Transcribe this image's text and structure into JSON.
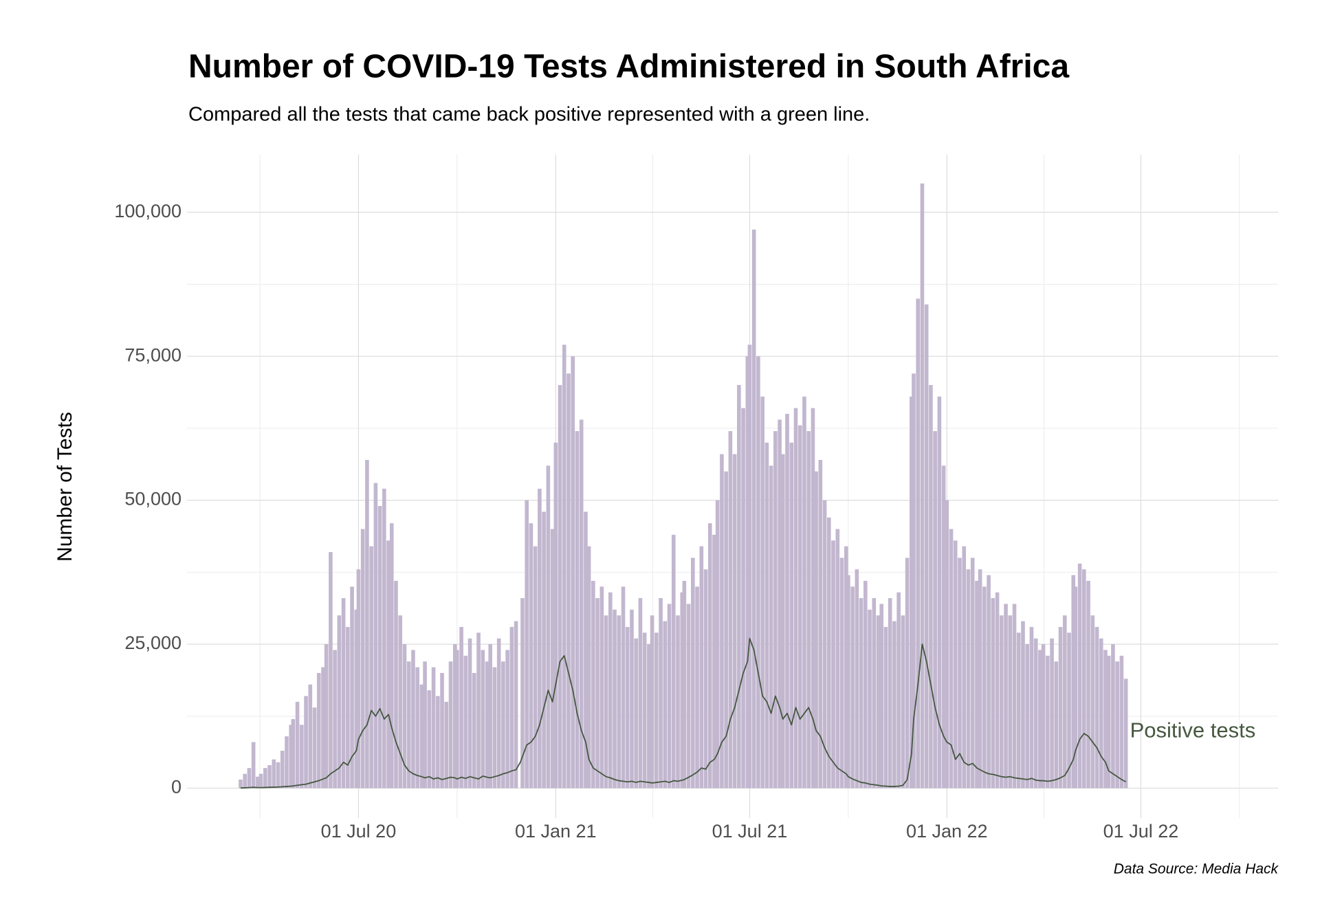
{
  "chart_data": {
    "type": "bar",
    "title": "Number of COVID-19 Tests Administered in South Africa",
    "subtitle": "Compared all the tests that came back positive represented with a green line.",
    "y_label": "Number of Tests",
    "caption": "Data Source: Media Hack",
    "grid": true,
    "xlim": [
      "2020-01-23",
      "2022-11-06"
    ],
    "ylim": [
      -5200,
      110000
    ],
    "xticks": [
      {
        "value": "2020-07-01",
        "label": "01 Jul 20"
      },
      {
        "value": "2021-01-01",
        "label": "01 Jan 21"
      },
      {
        "value": "2021-07-01",
        "label": "01 Jul 21"
      },
      {
        "value": "2022-01-01",
        "label": "01 Jan 22"
      },
      {
        "value": "2022-07-01",
        "label": "01 Jul 22"
      }
    ],
    "yticks": [
      0,
      {
        "value": 25000,
        "label": "25,000"
      },
      {
        "value": 50000,
        "label": "50,000"
      },
      {
        "value": 75000,
        "label": "75,000"
      },
      {
        "value": 100000,
        "label": "100,000"
      }
    ],
    "x": [
      "2020-03-13",
      "2020-03-17",
      "2020-03-21",
      "2020-03-25",
      "2020-03-29",
      "2020-04-01",
      "2020-04-05",
      "2020-04-09",
      "2020-04-13",
      "2020-04-17",
      "2020-04-21",
      "2020-04-25",
      "2020-04-29",
      "2020-05-01",
      "2020-05-05",
      "2020-05-09",
      "2020-05-13",
      "2020-05-17",
      "2020-05-21",
      "2020-05-25",
      "2020-05-29",
      "2020-06-01",
      "2020-06-05",
      "2020-06-09",
      "2020-06-13",
      "2020-06-17",
      "2020-06-21",
      "2020-06-25",
      "2020-06-29",
      "2020-07-01",
      "2020-07-05",
      "2020-07-09",
      "2020-07-13",
      "2020-07-17",
      "2020-07-21",
      "2020-07-25",
      "2020-07-29",
      "2020-08-01",
      "2020-08-05",
      "2020-08-09",
      "2020-08-13",
      "2020-08-17",
      "2020-08-21",
      "2020-08-25",
      "2020-08-29",
      "2020-09-01",
      "2020-09-05",
      "2020-09-09",
      "2020-09-13",
      "2020-09-17",
      "2020-09-21",
      "2020-09-25",
      "2020-09-29",
      "2020-10-01",
      "2020-10-05",
      "2020-10-09",
      "2020-10-13",
      "2020-10-17",
      "2020-10-21",
      "2020-10-25",
      "2020-10-29",
      "2020-11-01",
      "2020-11-05",
      "2020-11-09",
      "2020-11-13",
      "2020-11-17",
      "2020-11-21",
      "2020-11-25",
      "2020-11-29",
      "2020-12-01",
      "2020-12-05",
      "2020-12-09",
      "2020-12-13",
      "2020-12-17",
      "2020-12-21",
      "2020-12-25",
      "2020-12-29",
      "2021-01-01",
      "2021-01-05",
      "2021-01-09",
      "2021-01-13",
      "2021-01-17",
      "2021-01-21",
      "2021-01-25",
      "2021-01-29",
      "2021-02-01",
      "2021-02-05",
      "2021-02-09",
      "2021-02-13",
      "2021-02-17",
      "2021-02-21",
      "2021-02-25",
      "2021-03-01",
      "2021-03-05",
      "2021-03-09",
      "2021-03-13",
      "2021-03-17",
      "2021-03-21",
      "2021-03-25",
      "2021-03-29",
      "2021-04-01",
      "2021-04-05",
      "2021-04-09",
      "2021-04-13",
      "2021-04-17",
      "2021-04-21",
      "2021-04-25",
      "2021-04-29",
      "2021-05-01",
      "2021-05-05",
      "2021-05-09",
      "2021-05-13",
      "2021-05-17",
      "2021-05-21",
      "2021-05-25",
      "2021-05-29",
      "2021-06-01",
      "2021-06-05",
      "2021-06-09",
      "2021-06-13",
      "2021-06-17",
      "2021-06-21",
      "2021-06-25",
      "2021-06-29",
      "2021-07-01",
      "2021-07-05",
      "2021-07-09",
      "2021-07-13",
      "2021-07-17",
      "2021-07-21",
      "2021-07-25",
      "2021-07-29",
      "2021-08-01",
      "2021-08-05",
      "2021-08-09",
      "2021-08-13",
      "2021-08-17",
      "2021-08-21",
      "2021-08-25",
      "2021-08-29",
      "2021-09-01",
      "2021-09-05",
      "2021-09-09",
      "2021-09-13",
      "2021-09-17",
      "2021-09-21",
      "2021-09-25",
      "2021-09-29",
      "2021-10-01",
      "2021-10-05",
      "2021-10-09",
      "2021-10-13",
      "2021-10-17",
      "2021-10-21",
      "2021-10-25",
      "2021-10-29",
      "2021-11-01",
      "2021-11-05",
      "2021-11-09",
      "2021-11-13",
      "2021-11-17",
      "2021-11-21",
      "2021-11-25",
      "2021-11-29",
      "2021-12-01",
      "2021-12-05",
      "2021-12-09",
      "2021-12-13",
      "2021-12-17",
      "2021-12-21",
      "2021-12-25",
      "2021-12-29",
      "2022-01-01",
      "2022-01-05",
      "2022-01-09",
      "2022-01-13",
      "2022-01-17",
      "2022-01-21",
      "2022-01-25",
      "2022-01-29",
      "2022-02-01",
      "2022-02-05",
      "2022-02-09",
      "2022-02-13",
      "2022-02-17",
      "2022-02-21",
      "2022-02-25",
      "2022-03-01",
      "2022-03-05",
      "2022-03-09",
      "2022-03-13",
      "2022-03-17",
      "2022-03-21",
      "2022-03-25",
      "2022-03-29",
      "2022-04-01",
      "2022-04-05",
      "2022-04-09",
      "2022-04-13",
      "2022-04-17",
      "2022-04-21",
      "2022-04-25",
      "2022-04-29",
      "2022-05-01",
      "2022-05-05",
      "2022-05-09",
      "2022-05-13",
      "2022-05-17",
      "2022-05-21",
      "2022-05-25",
      "2022-05-29",
      "2022-06-01",
      "2022-06-05",
      "2022-06-09",
      "2022-06-13",
      "2022-06-17"
    ],
    "series": [
      {
        "type": "bar",
        "color": "#c2b7cf",
        "values": [
          1500,
          2500,
          3500,
          8000,
          2000,
          2500,
          3500,
          4000,
          5000,
          4500,
          6500,
          9000,
          11000,
          12000,
          15000,
          11000,
          16000,
          18000,
          14000,
          20000,
          21000,
          25000,
          41000,
          24000,
          30000,
          33000,
          28000,
          35000,
          31000,
          38000,
          45000,
          57000,
          42000,
          53000,
          49000,
          52000,
          43000,
          46000,
          36000,
          30000,
          25000,
          22000,
          24000,
          21000,
          18000,
          22000,
          17000,
          21000,
          16000,
          20000,
          15000,
          22000,
          25000,
          24000,
          28000,
          23000,
          26000,
          20000,
          27000,
          24000,
          22000,
          25000,
          21000,
          26000,
          22000,
          24000,
          28000,
          29000,
          null,
          33000,
          50000,
          46000,
          42000,
          52000,
          48000,
          56000,
          45000,
          60000,
          70000,
          77000,
          72000,
          75000,
          62000,
          64000,
          48000,
          42000,
          36000,
          33000,
          35000,
          30000,
          34000,
          31000,
          30000,
          35000,
          28000,
          31000,
          26000,
          33000,
          27000,
          25000,
          30000,
          27000,
          33000,
          29000,
          32000,
          44000,
          30000,
          34000,
          36000,
          32000,
          40000,
          35000,
          42000,
          38000,
          46000,
          44000,
          50000,
          58000,
          55000,
          62000,
          58000,
          70000,
          66000,
          75000,
          77000,
          97000,
          75000,
          68000,
          60000,
          56000,
          62000,
          64000,
          58000,
          65000,
          60000,
          66000,
          63000,
          68000,
          62000,
          66000,
          55000,
          57000,
          50000,
          47000,
          43000,
          45000,
          40000,
          42000,
          37000,
          35000,
          38000,
          33000,
          36000,
          31000,
          33000,
          30000,
          32000,
          28000,
          33000,
          29000,
          34000,
          30000,
          40000,
          68000,
          72000,
          85000,
          105000,
          84000,
          70000,
          62000,
          68000,
          56000,
          50000,
          45000,
          43000,
          40000,
          42000,
          38000,
          40000,
          36000,
          38000,
          35000,
          37000,
          33000,
          34000,
          30000,
          32000,
          30000,
          32000,
          27000,
          29000,
          25000,
          28000,
          26000,
          24000,
          25000,
          23000,
          26000,
          22000,
          28000,
          30000,
          27000,
          37000,
          35000,
          39000,
          38000,
          36000,
          30000,
          28000,
          26000,
          24000,
          23000,
          25000,
          22000,
          23000,
          19000
        ]
      },
      {
        "type": "line",
        "name": "Positive tests",
        "color": "#45573f",
        "values": [
          30,
          60,
          100,
          150,
          100,
          100,
          120,
          150,
          180,
          200,
          250,
          300,
          350,
          400,
          500,
          600,
          700,
          900,
          1100,
          1300,
          1600,
          1800,
          2500,
          3000,
          3500,
          4500,
          4000,
          5500,
          6500,
          8500,
          10000,
          11000,
          13500,
          12500,
          13800,
          12000,
          12800,
          10500,
          8000,
          6000,
          4000,
          3000,
          2500,
          2200,
          2000,
          1800,
          2000,
          1600,
          1800,
          1500,
          1700,
          1900,
          1800,
          1600,
          1900,
          1700,
          2000,
          1800,
          1600,
          2100,
          1900,
          1800,
          2000,
          2200,
          2500,
          2700,
          3000,
          3200,
          4500,
          5500,
          7500,
          8000,
          9000,
          11000,
          14000,
          17000,
          15000,
          18000,
          22000,
          23000,
          20000,
          17000,
          13000,
          10000,
          8000,
          5000,
          3500,
          3000,
          2500,
          2000,
          1800,
          1500,
          1300,
          1200,
          1100,
          1200,
          1000,
          1200,
          1100,
          1000,
          900,
          1000,
          1100,
          1200,
          1000,
          1300,
          1200,
          1400,
          1500,
          1900,
          2300,
          2800,
          3500,
          3300,
          4500,
          5000,
          6000,
          8000,
          9000,
          12000,
          14000,
          17000,
          20000,
          22000,
          26000,
          24000,
          20000,
          16000,
          15000,
          13000,
          16000,
          14000,
          12000,
          13000,
          11000,
          14000,
          12000,
          13000,
          14000,
          12000,
          10000,
          9000,
          7000,
          5500,
          4500,
          3500,
          3000,
          2500,
          2000,
          1600,
          1300,
          1000,
          900,
          700,
          600,
          500,
          400,
          350,
          300,
          300,
          350,
          500,
          1500,
          6000,
          12000,
          18000,
          25000,
          22000,
          18000,
          14000,
          11000,
          9000,
          8000,
          7500,
          5000,
          6000,
          4500,
          4000,
          4300,
          3500,
          3200,
          2800,
          2500,
          2400,
          2200,
          2000,
          1900,
          2000,
          1800,
          1700,
          1600,
          1500,
          1700,
          1400,
          1300,
          1300,
          1200,
          1300,
          1500,
          1800,
          2200,
          3500,
          5000,
          6500,
          8500,
          9500,
          9000,
          8000,
          7000,
          5500,
          4500,
          3000,
          2500,
          2000,
          1500,
          1100
        ]
      }
    ]
  }
}
